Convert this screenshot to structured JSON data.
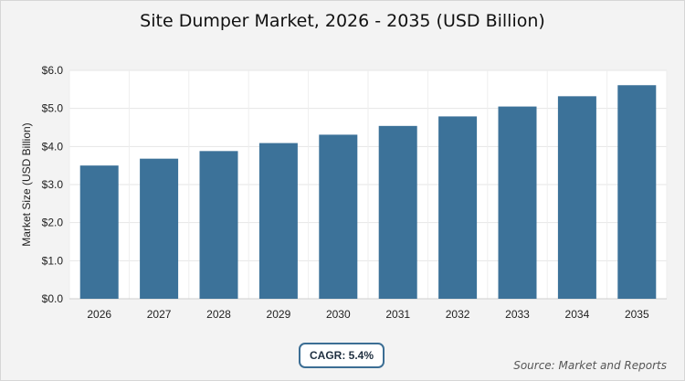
{
  "chart_data": {
    "type": "bar",
    "title": "Site Dumper Market, 2026 - 2035 (USD Billion)",
    "xlabel": "",
    "ylabel": "Market Size (USD Billion)",
    "categories": [
      "2026",
      "2027",
      "2028",
      "2029",
      "2030",
      "2031",
      "2032",
      "2033",
      "2034",
      "2035"
    ],
    "values": [
      3.5,
      3.68,
      3.88,
      4.09,
      4.31,
      4.54,
      4.79,
      5.05,
      5.32,
      5.61
    ],
    "ylim": [
      0,
      6
    ],
    "yticks": [
      0,
      1,
      2,
      3,
      4,
      5,
      6
    ],
    "ytick_labels": [
      "$0.0",
      "$1.0",
      "$2.0",
      "$3.0",
      "$4.0",
      "$5.0",
      "$6.0"
    ],
    "grid": true,
    "bar_color": "#3c7299"
  },
  "badge": {
    "cagr": "CAGR: 5.4%"
  },
  "source": "Source: Market and Reports"
}
